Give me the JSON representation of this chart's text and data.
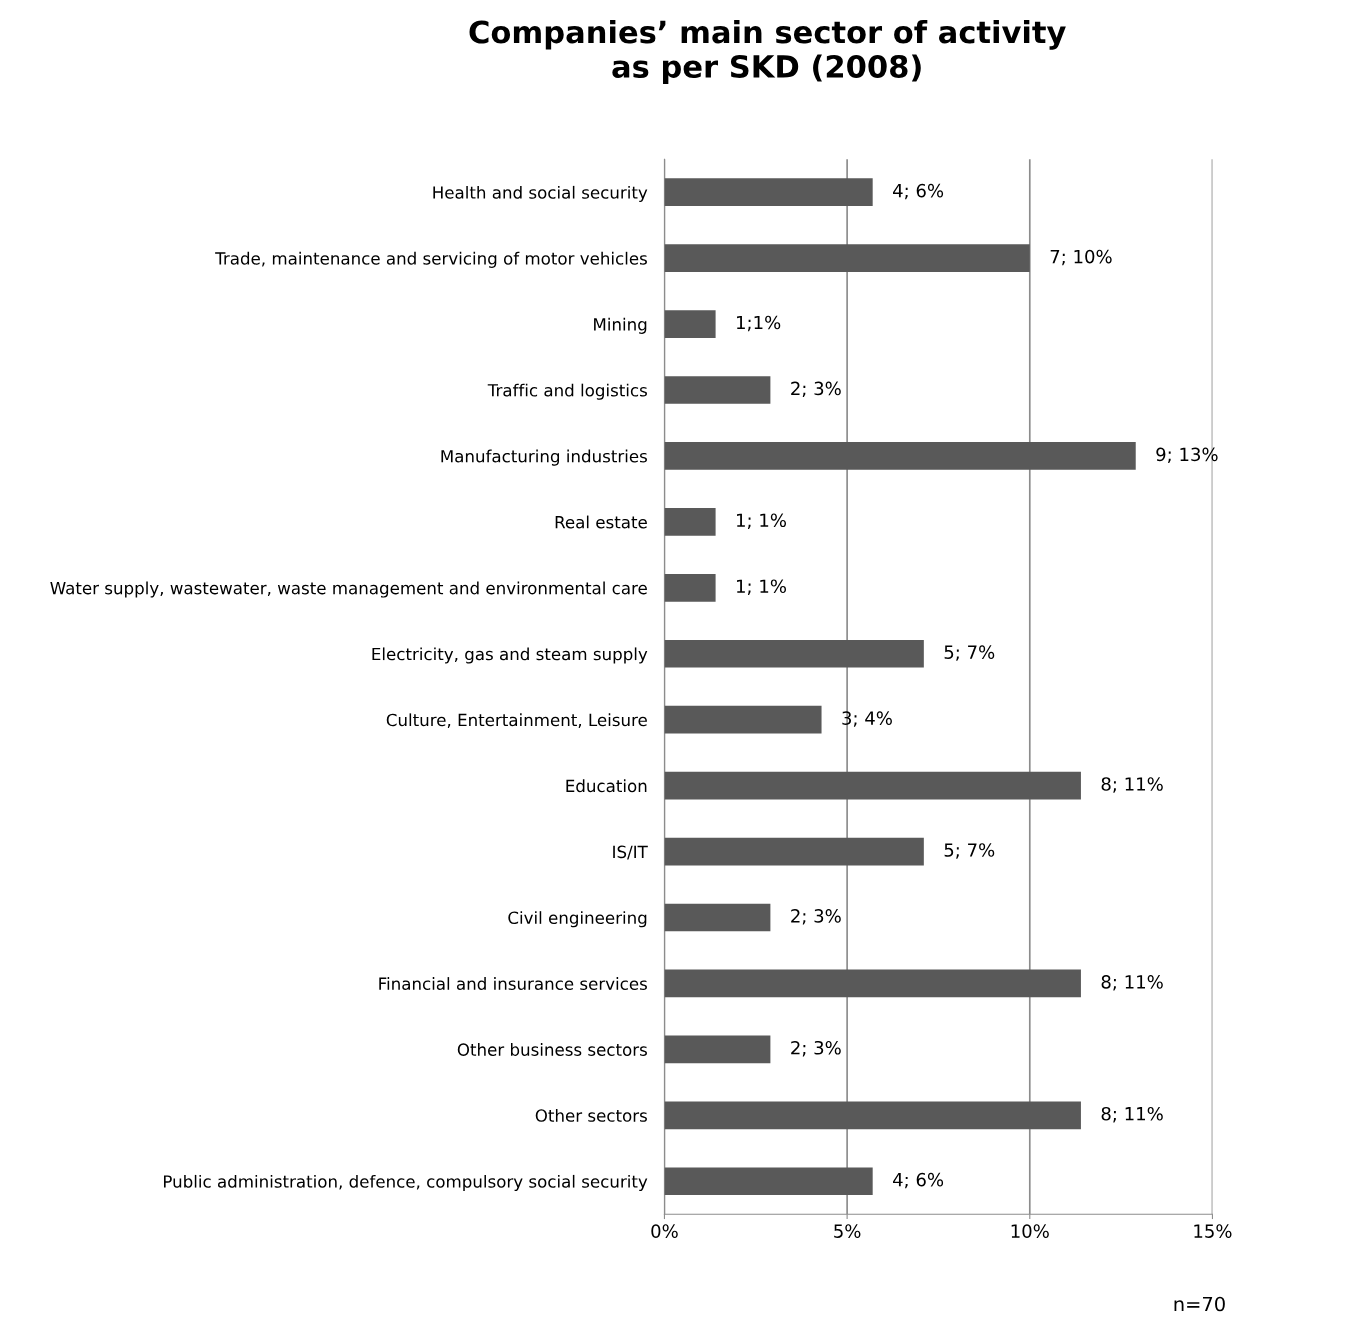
{
  "chart_data": {
    "type": "bar",
    "orientation": "horizontal",
    "title": "Companies’ main sector of activity\nas per SKD (2008)",
    "categories": [
      "Health and social security",
      "Trade, maintenance and servicing of motor vehicles",
      "Mining",
      "Traffic and logistics",
      "Manufacturing industries",
      "Real estate",
      "Water supply, wastewater, waste management and environmental care",
      "Electricity, gas and steam supply",
      "Culture, Entertainment, Leisure",
      "Education",
      "IS/IT",
      "Civil engineering",
      "Financial and insurance services",
      "Other business sectors",
      "Other sectors",
      "Public administration, defence, compulsory social security"
    ],
    "values": [
      5.7,
      10.0,
      1.4,
      2.9,
      12.9,
      1.4,
      1.4,
      7.1,
      4.3,
      11.4,
      7.1,
      2.9,
      11.4,
      2.9,
      11.4,
      5.7
    ],
    "value_labels": [
      "4; 6%",
      "7; 10%",
      "1;1%",
      "2; 3%",
      "9; 13%",
      "1; 1%",
      "1; 1%",
      "5; 7%",
      "3; 4%",
      "8; 11%",
      "5; 7%",
      "2; 3%",
      "8; 11%",
      "2; 3%",
      "8; 11%",
      "4; 6%"
    ],
    "color": "#595959",
    "xlim": [
      0,
      15
    ],
    "xticks": [
      {
        "value": 0,
        "label": "0%"
      },
      {
        "value": 5,
        "label": "5%"
      },
      {
        "value": 10,
        "label": "10%"
      },
      {
        "value": 15,
        "label": "15%"
      }
    ],
    "grid": "x",
    "annotations": [
      "n=70"
    ]
  }
}
